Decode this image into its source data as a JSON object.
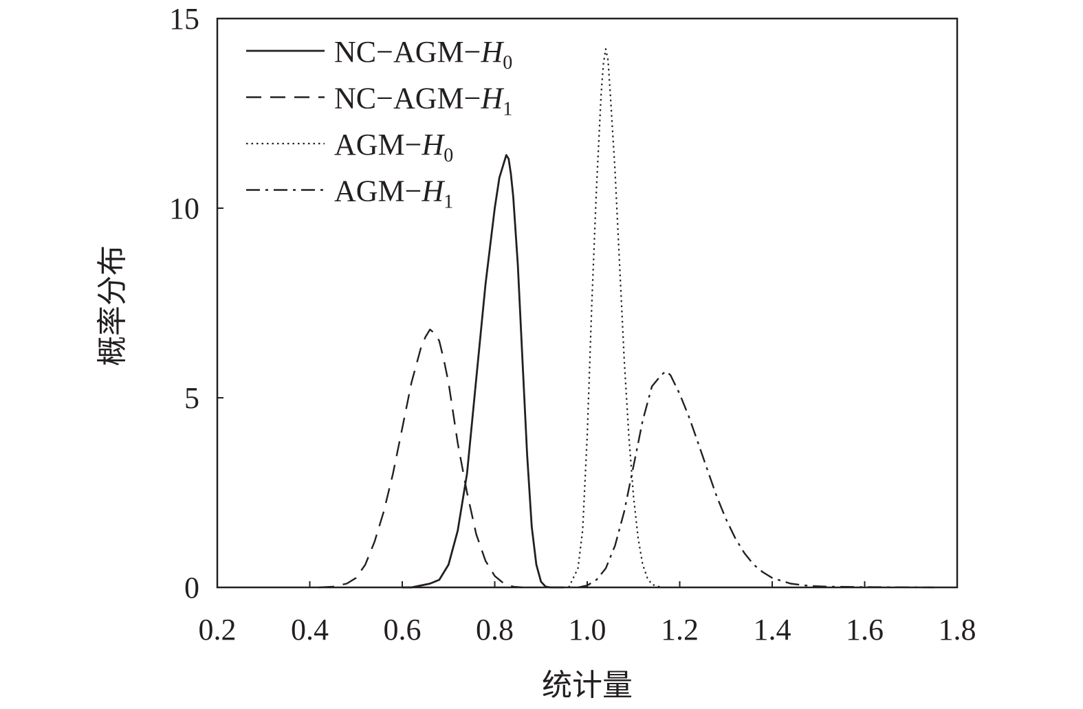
{
  "chart_data": {
    "type": "line",
    "xlabel": "统计量",
    "ylabel": "概率分布",
    "xlim": [
      0.2,
      1.8
    ],
    "ylim": [
      0,
      15
    ],
    "xticks": [
      "0.2",
      "0.4",
      "0.6",
      "0.8",
      "1.0",
      "1.2",
      "1.4",
      "1.6",
      "1.8"
    ],
    "yticks": [
      "0",
      "5",
      "10",
      "15"
    ],
    "legend_position": "top-left",
    "series": [
      {
        "name": "NC−AGM−H0",
        "label_base": "NC−AGM−",
        "label_var": "H",
        "label_sub": "0",
        "style": "solid",
        "x": [
          0.6,
          0.62,
          0.64,
          0.66,
          0.68,
          0.7,
          0.72,
          0.74,
          0.76,
          0.78,
          0.8,
          0.81,
          0.82,
          0.825,
          0.83,
          0.835,
          0.84,
          0.85,
          0.86,
          0.87,
          0.88,
          0.89,
          0.9,
          0.91,
          0.92,
          0.95
        ],
        "y": [
          0,
          0,
          0.05,
          0.1,
          0.2,
          0.6,
          1.5,
          3.0,
          5.5,
          8.0,
          10.0,
          10.8,
          11.2,
          11.4,
          11.3,
          10.9,
          10.3,
          8.5,
          6.0,
          3.5,
          1.6,
          0.6,
          0.15,
          0.02,
          0,
          0
        ]
      },
      {
        "name": "NC−AGM−H1",
        "label_base": "NC−AGM−",
        "label_var": "H",
        "label_sub": "1",
        "style": "dashed",
        "x": [
          0.42,
          0.45,
          0.48,
          0.5,
          0.52,
          0.54,
          0.56,
          0.58,
          0.6,
          0.62,
          0.64,
          0.65,
          0.66,
          0.67,
          0.68,
          0.69,
          0.7,
          0.72,
          0.74,
          0.76,
          0.78,
          0.8,
          0.82,
          0.84,
          0.86
        ],
        "y": [
          0,
          0.02,
          0.1,
          0.25,
          0.6,
          1.2,
          2.0,
          3.0,
          4.2,
          5.4,
          6.3,
          6.6,
          6.8,
          6.7,
          6.5,
          6.0,
          5.4,
          3.8,
          2.5,
          1.4,
          0.7,
          0.3,
          0.1,
          0.02,
          0
        ]
      },
      {
        "name": "AGM−H0",
        "label_base": "AGM−",
        "label_var": "H",
        "label_sub": "0",
        "style": "dotted",
        "x": [
          0.96,
          0.98,
          0.99,
          1.0,
          1.01,
          1.02,
          1.03,
          1.035,
          1.04,
          1.045,
          1.05,
          1.06,
          1.07,
          1.08,
          1.09,
          1.1,
          1.11,
          1.12,
          1.13,
          1.14,
          1.16
        ],
        "y": [
          0,
          0.5,
          1.5,
          4.0,
          7.5,
          10.5,
          13.0,
          13.8,
          14.2,
          13.9,
          13.0,
          11.0,
          8.5,
          6.0,
          4.0,
          2.4,
          1.3,
          0.6,
          0.25,
          0.08,
          0
        ]
      },
      {
        "name": "AGM−H1",
        "label_base": "AGM−",
        "label_var": "H",
        "label_sub": "1",
        "style": "dashdot",
        "x": [
          0.98,
          1.0,
          1.02,
          1.04,
          1.06,
          1.08,
          1.1,
          1.12,
          1.14,
          1.16,
          1.17,
          1.18,
          1.2,
          1.22,
          1.24,
          1.26,
          1.28,
          1.3,
          1.32,
          1.34,
          1.36,
          1.38,
          1.4,
          1.44,
          1.48,
          1.52,
          1.58,
          1.66,
          1.75
        ],
        "y": [
          0,
          0.05,
          0.2,
          0.5,
          1.1,
          2.0,
          3.2,
          4.4,
          5.3,
          5.6,
          5.7,
          5.6,
          5.1,
          4.5,
          3.8,
          3.1,
          2.4,
          1.8,
          1.3,
          0.9,
          0.6,
          0.4,
          0.25,
          0.1,
          0.04,
          0.02,
          0.01,
          0.005,
          0
        ]
      }
    ]
  }
}
